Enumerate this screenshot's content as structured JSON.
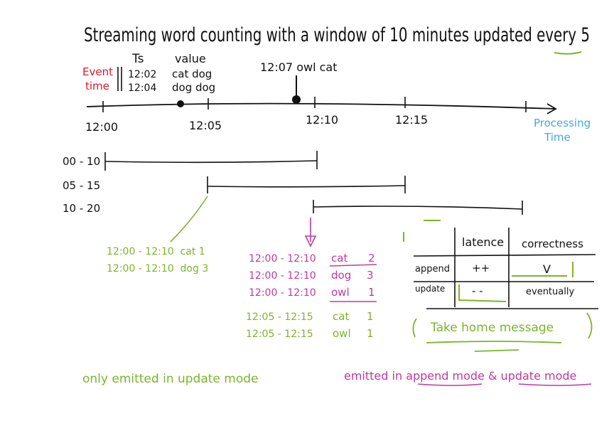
{
  "title": "Streaming word counting with a window of 10 minutes updated every 5",
  "event_time_label": [
    "Event",
    "time"
  ],
  "ts_header": "Ts",
  "value_header": "value",
  "events": [
    {
      "ts": "12:02",
      "value": "cat dog"
    },
    {
      "ts": "12:04",
      "value": "dog dog"
    }
  ],
  "late_event": "12:07 owl cat",
  "axis_ticks": [
    "12:00",
    "12:05",
    "12:10",
    "12:15"
  ],
  "processing_time_label": [
    "Processing",
    "Time"
  ],
  "windows": [
    "00 - 10",
    "05 - 15",
    "10 - 20"
  ],
  "update_mode_results": [
    "12:00 - 12:10  cat 1",
    "12:00 - 12:10  dog 3"
  ],
  "append_results": [
    {
      "window": "12:00 - 12:10",
      "word": "cat",
      "count": "2"
    },
    {
      "window": "12:00 - 12:10",
      "word": "dog",
      "count": "3"
    },
    {
      "window": "12:00 - 12:10",
      "word": "owl",
      "count": "1"
    }
  ],
  "later_results": [
    {
      "window": "12:05 - 12:15",
      "word": "cat",
      "count": "1"
    },
    {
      "window": "12:05 - 12:15",
      "word": "owl",
      "count": "1"
    }
  ],
  "comparison": {
    "headers": [
      "latence",
      "correctness"
    ],
    "rows": [
      {
        "mode": "append",
        "latence": "++",
        "correctness": "V"
      },
      {
        "mode": "update",
        "latence": "- -",
        "correctness": "eventually"
      }
    ]
  },
  "take_home": "Take home message",
  "note_update": "only emitted in update mode",
  "note_append": "emitted in append mode & update mode"
}
